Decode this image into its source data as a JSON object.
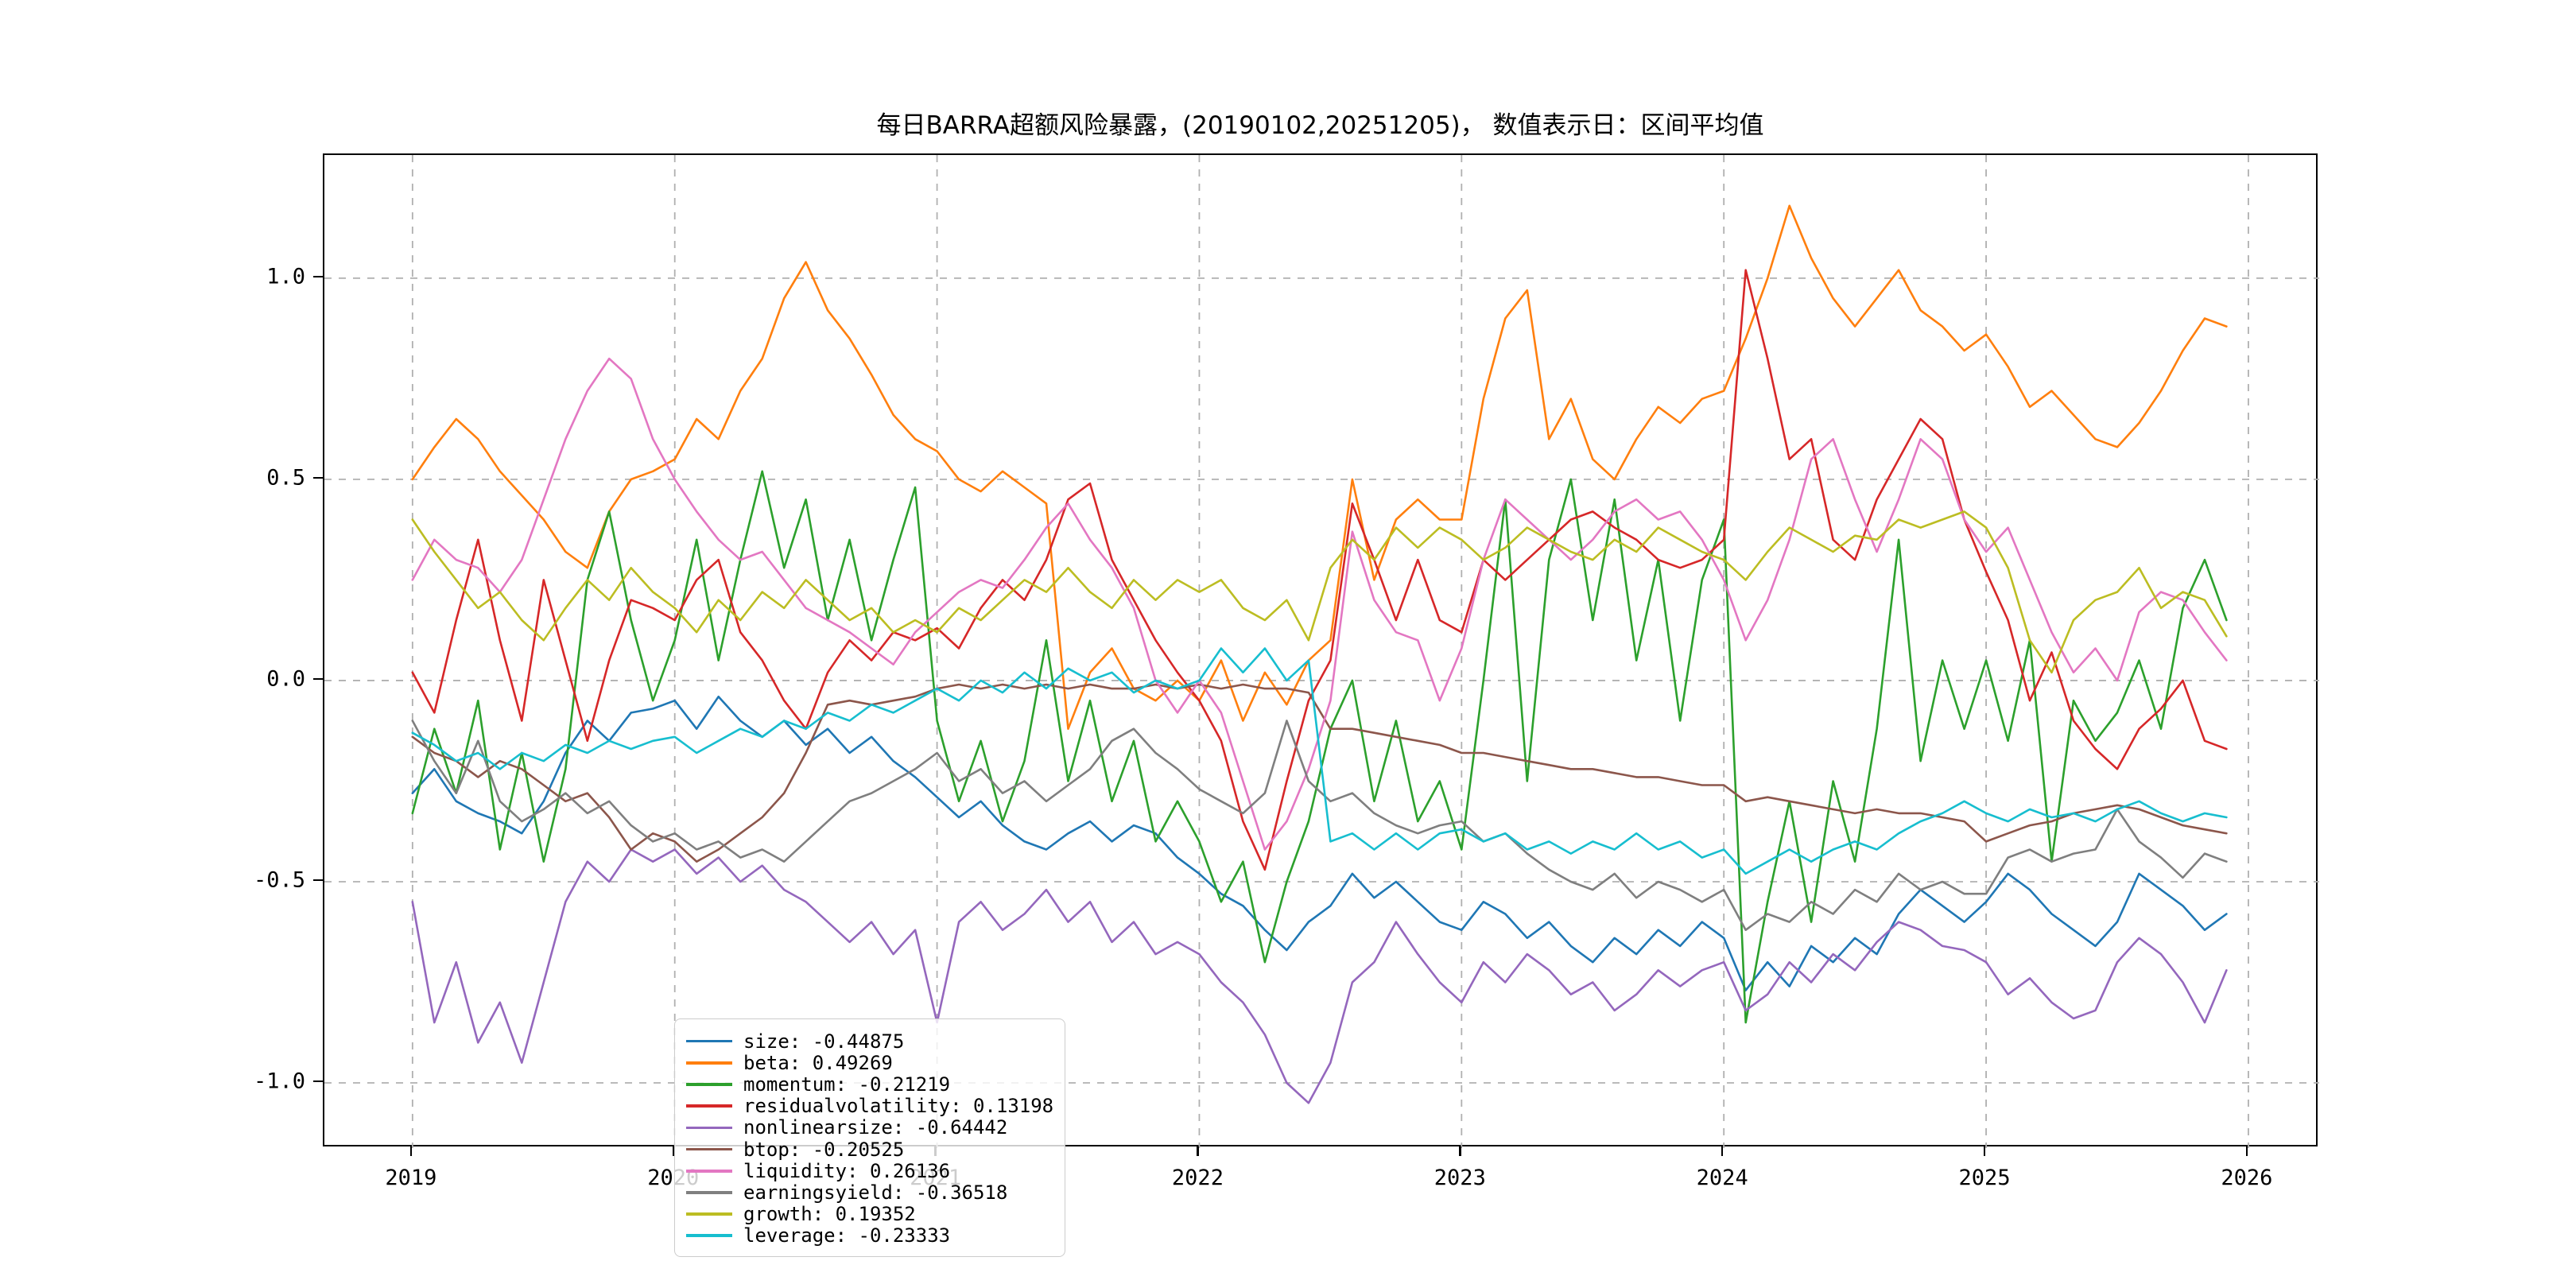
{
  "figure": {
    "title": "每日BARRA超额风险暴露，(20190102,20251205)， 数值表示日：区间平均值",
    "background_color": "#ffffff",
    "grid_color": "#b0b0b0",
    "spine_color": "#000000"
  },
  "chart_data": {
    "type": "line",
    "title": "每日BARRA超额风险暴露，(20190102,20251205)， 数值表示日：区间平均值",
    "xlabel": "",
    "ylabel": "",
    "grid": true,
    "grid_style": "dashed",
    "legend_position": "lower-left",
    "x_axis": {
      "range": [
        2018.664,
        2026.27
      ],
      "tick_values": [
        2019,
        2020,
        2021,
        2022,
        2023,
        2024,
        2025,
        2026
      ],
      "tick_labels": [
        "2019",
        "2020",
        "2021",
        "2022",
        "2023",
        "2024",
        "2025",
        "2026"
      ]
    },
    "y_axis": {
      "range": [
        -1.162,
        1.306
      ],
      "tick_values": [
        1.0,
        0.5,
        0.0,
        -0.5,
        -1.0
      ],
      "tick_labels": [
        "1.0",
        "0.5",
        "0.0",
        "-0.5",
        "-1.0"
      ]
    },
    "x_start": 2019.0,
    "x_step": 0.0833333,
    "date_span": [
      "20190102",
      "20251205"
    ],
    "legend_entries": [
      "size: -0.44875",
      "beta: 0.49269",
      "momentum: -0.21219",
      "residualvolatility: 0.13198",
      "nonlinearsize: -0.64442",
      "btop: -0.20525",
      "liquidity: 0.26136",
      "earningsyield: -0.36518",
      "growth: 0.19352",
      "leverage: -0.23333"
    ],
    "series": [
      {
        "name": "size",
        "mean": -0.44875,
        "color": "#1f77b4",
        "values": [
          -0.28,
          -0.22,
          -0.3,
          -0.33,
          -0.35,
          -0.38,
          -0.3,
          -0.18,
          -0.1,
          -0.15,
          -0.08,
          -0.07,
          -0.05,
          -0.12,
          -0.04,
          -0.1,
          -0.14,
          -0.1,
          -0.16,
          -0.12,
          -0.18,
          -0.14,
          -0.2,
          -0.24,
          -0.29,
          -0.34,
          -0.3,
          -0.36,
          -0.4,
          -0.42,
          -0.38,
          -0.35,
          -0.4,
          -0.36,
          -0.38,
          -0.44,
          -0.48,
          -0.53,
          -0.56,
          -0.62,
          -0.67,
          -0.6,
          -0.56,
          -0.48,
          -0.54,
          -0.5,
          -0.55,
          -0.6,
          -0.62,
          -0.55,
          -0.58,
          -0.64,
          -0.6,
          -0.66,
          -0.7,
          -0.64,
          -0.68,
          -0.62,
          -0.66,
          -0.6,
          -0.64,
          -0.77,
          -0.7,
          -0.76,
          -0.66,
          -0.7,
          -0.64,
          -0.68,
          -0.58,
          -0.52,
          -0.56,
          -0.6,
          -0.55,
          -0.48,
          -0.52,
          -0.58,
          -0.62,
          -0.66,
          -0.6,
          -0.48,
          -0.52,
          -0.56,
          -0.62,
          -0.58
        ]
      },
      {
        "name": "beta",
        "mean": 0.49269,
        "color": "#ff7f0e",
        "values": [
          0.5,
          0.58,
          0.65,
          0.6,
          0.52,
          0.46,
          0.4,
          0.32,
          0.28,
          0.42,
          0.5,
          0.52,
          0.55,
          0.65,
          0.6,
          0.72,
          0.8,
          0.95,
          1.04,
          0.92,
          0.85,
          0.76,
          0.66,
          0.6,
          0.57,
          0.5,
          0.47,
          0.52,
          0.48,
          0.44,
          -0.12,
          0.02,
          0.08,
          -0.02,
          -0.05,
          0.0,
          -0.05,
          0.05,
          -0.1,
          0.02,
          -0.06,
          0.05,
          0.1,
          0.5,
          0.25,
          0.4,
          0.45,
          0.4,
          0.4,
          0.7,
          0.9,
          0.97,
          0.6,
          0.7,
          0.55,
          0.5,
          0.6,
          0.68,
          0.64,
          0.7,
          0.72,
          0.85,
          1.0,
          1.18,
          1.05,
          0.95,
          0.88,
          0.95,
          1.02,
          0.92,
          0.88,
          0.82,
          0.86,
          0.78,
          0.68,
          0.72,
          0.66,
          0.6,
          0.58,
          0.64,
          0.72,
          0.82,
          0.9,
          0.88
        ]
      },
      {
        "name": "momentum",
        "mean": -0.21219,
        "color": "#2ca02c",
        "values": [
          -0.33,
          -0.12,
          -0.28,
          -0.05,
          -0.42,
          -0.18,
          -0.45,
          -0.22,
          0.25,
          0.42,
          0.15,
          -0.05,
          0.1,
          0.35,
          0.05,
          0.3,
          0.52,
          0.28,
          0.45,
          0.15,
          0.35,
          0.1,
          0.3,
          0.48,
          -0.1,
          -0.3,
          -0.15,
          -0.35,
          -0.2,
          0.1,
          -0.25,
          -0.05,
          -0.3,
          -0.15,
          -0.4,
          -0.3,
          -0.4,
          -0.55,
          -0.45,
          -0.7,
          -0.5,
          -0.35,
          -0.12,
          0.0,
          -0.3,
          -0.1,
          -0.35,
          -0.25,
          -0.42,
          0.0,
          0.45,
          -0.25,
          0.3,
          0.5,
          0.15,
          0.45,
          0.05,
          0.3,
          -0.1,
          0.25,
          0.4,
          -0.85,
          -0.55,
          -0.3,
          -0.6,
          -0.25,
          -0.45,
          -0.12,
          0.35,
          -0.2,
          0.05,
          -0.12,
          0.05,
          -0.15,
          0.1,
          -0.45,
          -0.05,
          -0.15,
          -0.08,
          0.05,
          -0.12,
          0.18,
          0.3,
          0.15
        ]
      },
      {
        "name": "residualvolatility",
        "mean": 0.13198,
        "color": "#d62728",
        "values": [
          0.02,
          -0.08,
          0.15,
          0.35,
          0.1,
          -0.1,
          0.25,
          0.05,
          -0.15,
          0.05,
          0.2,
          0.18,
          0.15,
          0.25,
          0.3,
          0.12,
          0.05,
          -0.05,
          -0.12,
          0.02,
          0.1,
          0.05,
          0.12,
          0.1,
          0.13,
          0.08,
          0.18,
          0.25,
          0.2,
          0.3,
          0.45,
          0.49,
          0.3,
          0.2,
          0.1,
          0.02,
          -0.05,
          -0.15,
          -0.35,
          -0.47,
          -0.25,
          -0.05,
          0.05,
          0.44,
          0.3,
          0.15,
          0.3,
          0.15,
          0.12,
          0.3,
          0.25,
          0.3,
          0.35,
          0.4,
          0.42,
          0.38,
          0.35,
          0.3,
          0.28,
          0.3,
          0.35,
          1.02,
          0.8,
          0.55,
          0.6,
          0.35,
          0.3,
          0.45,
          0.55,
          0.65,
          0.6,
          0.4,
          0.27,
          0.15,
          -0.05,
          0.07,
          -0.1,
          -0.17,
          -0.22,
          -0.12,
          -0.07,
          0.0,
          -0.15,
          -0.17
        ]
      },
      {
        "name": "nonlinearsize",
        "mean": -0.64442,
        "color": "#9467bd",
        "values": [
          -0.55,
          -0.85,
          -0.7,
          -0.9,
          -0.8,
          -0.95,
          -0.75,
          -0.55,
          -0.45,
          -0.5,
          -0.42,
          -0.45,
          -0.42,
          -0.48,
          -0.44,
          -0.5,
          -0.46,
          -0.52,
          -0.55,
          -0.6,
          -0.65,
          -0.6,
          -0.68,
          -0.62,
          -0.85,
          -0.6,
          -0.55,
          -0.62,
          -0.58,
          -0.52,
          -0.6,
          -0.55,
          -0.65,
          -0.6,
          -0.68,
          -0.65,
          -0.68,
          -0.75,
          -0.8,
          -0.88,
          -1.0,
          -1.05,
          -0.95,
          -0.75,
          -0.7,
          -0.6,
          -0.68,
          -0.75,
          -0.8,
          -0.7,
          -0.75,
          -0.68,
          -0.72,
          -0.78,
          -0.75,
          -0.82,
          -0.78,
          -0.72,
          -0.76,
          -0.72,
          -0.7,
          -0.82,
          -0.78,
          -0.7,
          -0.75,
          -0.68,
          -0.72,
          -0.65,
          -0.6,
          -0.62,
          -0.66,
          -0.67,
          -0.7,
          -0.78,
          -0.74,
          -0.8,
          -0.84,
          -0.82,
          -0.7,
          -0.64,
          -0.68,
          -0.75,
          -0.85,
          -0.72
        ]
      },
      {
        "name": "btop",
        "mean": -0.20525,
        "color": "#8c564b",
        "values": [
          -0.14,
          -0.18,
          -0.2,
          -0.24,
          -0.2,
          -0.22,
          -0.26,
          -0.3,
          -0.28,
          -0.34,
          -0.42,
          -0.38,
          -0.4,
          -0.45,
          -0.42,
          -0.38,
          -0.34,
          -0.28,
          -0.18,
          -0.06,
          -0.05,
          -0.06,
          -0.05,
          -0.04,
          -0.02,
          -0.01,
          -0.02,
          -0.01,
          -0.02,
          -0.01,
          -0.02,
          -0.01,
          -0.02,
          -0.02,
          -0.01,
          -0.02,
          -0.01,
          -0.02,
          -0.01,
          -0.02,
          -0.02,
          -0.03,
          -0.12,
          -0.12,
          -0.13,
          -0.14,
          -0.15,
          -0.16,
          -0.18,
          -0.18,
          -0.19,
          -0.2,
          -0.21,
          -0.22,
          -0.22,
          -0.23,
          -0.24,
          -0.24,
          -0.25,
          -0.26,
          -0.26,
          -0.3,
          -0.29,
          -0.3,
          -0.31,
          -0.32,
          -0.33,
          -0.32,
          -0.33,
          -0.33,
          -0.34,
          -0.35,
          -0.4,
          -0.38,
          -0.36,
          -0.35,
          -0.33,
          -0.32,
          -0.31,
          -0.32,
          -0.34,
          -0.36,
          -0.37,
          -0.38
        ]
      },
      {
        "name": "liquidity",
        "mean": 0.26136,
        "color": "#e377c2",
        "values": [
          0.25,
          0.35,
          0.3,
          0.28,
          0.22,
          0.3,
          0.45,
          0.6,
          0.72,
          0.8,
          0.75,
          0.6,
          0.5,
          0.42,
          0.35,
          0.3,
          0.32,
          0.25,
          0.18,
          0.15,
          0.12,
          0.08,
          0.04,
          0.12,
          0.17,
          0.22,
          0.25,
          0.23,
          0.3,
          0.38,
          0.44,
          0.35,
          0.28,
          0.18,
          0.0,
          -0.08,
          0.0,
          -0.08,
          -0.25,
          -0.42,
          -0.35,
          -0.22,
          -0.05,
          0.37,
          0.2,
          0.12,
          0.1,
          -0.05,
          0.08,
          0.3,
          0.45,
          0.4,
          0.35,
          0.3,
          0.35,
          0.42,
          0.45,
          0.4,
          0.42,
          0.35,
          0.25,
          0.1,
          0.2,
          0.35,
          0.55,
          0.6,
          0.45,
          0.32,
          0.45,
          0.6,
          0.55,
          0.4,
          0.32,
          0.38,
          0.25,
          0.12,
          0.02,
          0.08,
          0.0,
          0.17,
          0.22,
          0.2,
          0.12,
          0.05
        ]
      },
      {
        "name": "earningsyield",
        "mean": -0.36518,
        "color": "#7f7f7f",
        "values": [
          -0.1,
          -0.2,
          -0.28,
          -0.15,
          -0.3,
          -0.35,
          -0.32,
          -0.28,
          -0.33,
          -0.3,
          -0.36,
          -0.4,
          -0.38,
          -0.42,
          -0.4,
          -0.44,
          -0.42,
          -0.45,
          -0.4,
          -0.35,
          -0.3,
          -0.28,
          -0.25,
          -0.22,
          -0.18,
          -0.25,
          -0.22,
          -0.28,
          -0.25,
          -0.3,
          -0.26,
          -0.22,
          -0.15,
          -0.12,
          -0.18,
          -0.22,
          -0.27,
          -0.3,
          -0.33,
          -0.28,
          -0.1,
          -0.25,
          -0.3,
          -0.28,
          -0.33,
          -0.36,
          -0.38,
          -0.36,
          -0.35,
          -0.4,
          -0.38,
          -0.43,
          -0.47,
          -0.5,
          -0.52,
          -0.48,
          -0.54,
          -0.5,
          -0.52,
          -0.55,
          -0.52,
          -0.62,
          -0.58,
          -0.6,
          -0.55,
          -0.58,
          -0.52,
          -0.55,
          -0.48,
          -0.52,
          -0.5,
          -0.53,
          -0.53,
          -0.44,
          -0.42,
          -0.45,
          -0.43,
          -0.42,
          -0.32,
          -0.4,
          -0.44,
          -0.49,
          -0.43,
          -0.45
        ]
      },
      {
        "name": "growth",
        "mean": 0.19352,
        "color": "#bcbd22",
        "values": [
          0.4,
          0.32,
          0.25,
          0.18,
          0.22,
          0.15,
          0.1,
          0.18,
          0.25,
          0.2,
          0.28,
          0.22,
          0.18,
          0.12,
          0.2,
          0.15,
          0.22,
          0.18,
          0.25,
          0.2,
          0.15,
          0.18,
          0.12,
          0.15,
          0.12,
          0.18,
          0.15,
          0.2,
          0.25,
          0.22,
          0.28,
          0.22,
          0.18,
          0.25,
          0.2,
          0.25,
          0.22,
          0.25,
          0.18,
          0.15,
          0.2,
          0.1,
          0.28,
          0.35,
          0.3,
          0.38,
          0.33,
          0.38,
          0.35,
          0.3,
          0.33,
          0.38,
          0.35,
          0.32,
          0.3,
          0.35,
          0.32,
          0.38,
          0.35,
          0.32,
          0.3,
          0.25,
          0.32,
          0.38,
          0.35,
          0.32,
          0.36,
          0.35,
          0.4,
          0.38,
          0.4,
          0.42,
          0.38,
          0.28,
          0.1,
          0.02,
          0.15,
          0.2,
          0.22,
          0.28,
          0.18,
          0.22,
          0.2,
          0.11
        ]
      },
      {
        "name": "leverage",
        "mean": -0.23333,
        "color": "#17becf",
        "values": [
          -0.13,
          -0.16,
          -0.2,
          -0.18,
          -0.22,
          -0.18,
          -0.2,
          -0.16,
          -0.18,
          -0.15,
          -0.17,
          -0.15,
          -0.14,
          -0.18,
          -0.15,
          -0.12,
          -0.14,
          -0.1,
          -0.12,
          -0.08,
          -0.1,
          -0.06,
          -0.08,
          -0.05,
          -0.02,
          -0.05,
          0.0,
          -0.03,
          0.02,
          -0.02,
          0.03,
          0.0,
          0.02,
          -0.03,
          0.0,
          -0.02,
          0.0,
          0.08,
          0.02,
          0.08,
          0.0,
          0.05,
          -0.4,
          -0.38,
          -0.42,
          -0.38,
          -0.42,
          -0.38,
          -0.37,
          -0.4,
          -0.38,
          -0.42,
          -0.4,
          -0.43,
          -0.4,
          -0.42,
          -0.38,
          -0.42,
          -0.4,
          -0.44,
          -0.42,
          -0.48,
          -0.45,
          -0.42,
          -0.45,
          -0.42,
          -0.4,
          -0.42,
          -0.38,
          -0.35,
          -0.33,
          -0.3,
          -0.33,
          -0.35,
          -0.32,
          -0.34,
          -0.33,
          -0.35,
          -0.32,
          -0.3,
          -0.33,
          -0.35,
          -0.33,
          -0.34
        ]
      }
    ]
  }
}
